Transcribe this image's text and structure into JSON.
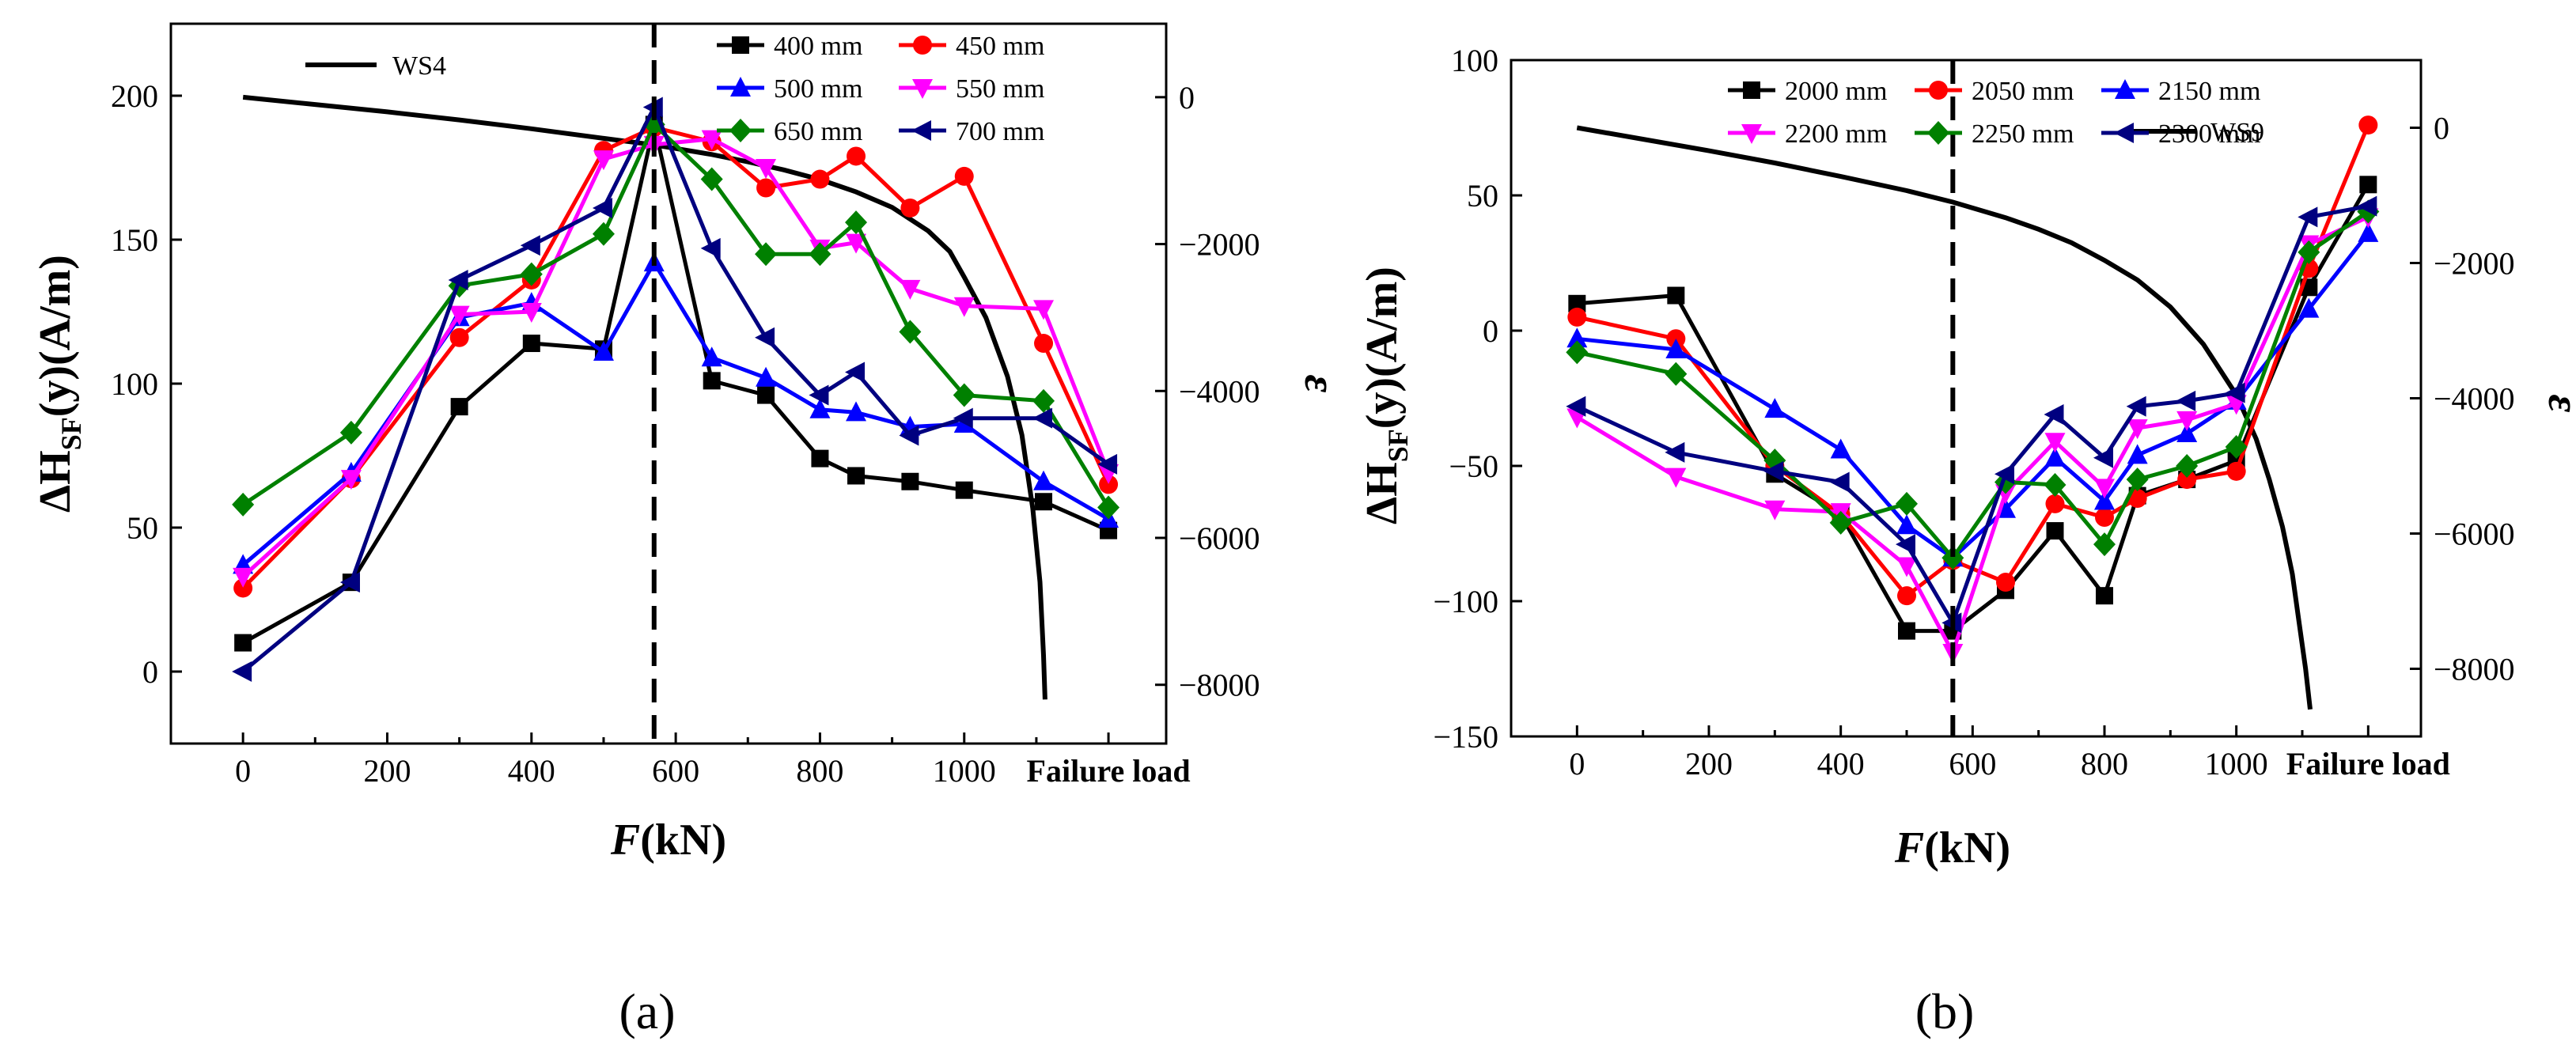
{
  "chart_data": [
    {
      "type": "line",
      "panel_label": "(a)",
      "xlabel": "F(kN)",
      "xlabel_main": "F",
      "xlabel_unit": "(kN)",
      "ylabel": "ΔH_SF(y)(A/m)",
      "ylabel_prefix": "ΔH",
      "ylabel_sub": "SF",
      "ylabel_suffix": "(y)(A/m)",
      "y2label": "ε",
      "xlim": [
        -100,
        1280
      ],
      "ylim": [
        -25,
        225
      ],
      "y2lim": [
        -8800,
        1000
      ],
      "x_ticks": [
        0,
        200,
        400,
        600,
        800,
        1000
      ],
      "x_tick_labels": [
        "0",
        "200",
        "400",
        "600",
        "800",
        "1000"
      ],
      "failure_label": "Failure load",
      "failure_x": 1200,
      "y_ticks": [
        0,
        50,
        100,
        150,
        200
      ],
      "y_tick_labels": [
        "0",
        "50",
        "100",
        "150",
        "200"
      ],
      "y2_ticks": [
        0,
        -2000,
        -4000,
        -6000,
        -8000
      ],
      "y2_tick_labels": [
        "0",
        "−2000",
        "−4000",
        "−6000",
        "−8000"
      ],
      "dashed_x": 570,
      "x": [
        0,
        150,
        300,
        400,
        500,
        570,
        650,
        725,
        800,
        850,
        925,
        1000,
        1110,
        1200
      ],
      "series": [
        {
          "name": "400 mm",
          "color": "#000000",
          "marker": "square",
          "values": [
            10,
            31,
            92,
            114,
            112,
            190,
            101,
            96,
            74,
            68,
            66,
            63,
            59,
            49
          ]
        },
        {
          "name": "450 mm",
          "color": "#ff0000",
          "marker": "circle",
          "values": [
            29,
            67,
            116,
            136,
            181,
            189,
            184,
            168,
            171,
            179,
            161,
            172,
            114,
            65
          ]
        },
        {
          "name": "500 mm",
          "color": "#0000ff",
          "marker": "triangle-up",
          "values": [
            37,
            69,
            123,
            128,
            111,
            142,
            109,
            102,
            91,
            90,
            85,
            86,
            66,
            53
          ]
        },
        {
          "name": "550 mm",
          "color": "#ff00ff",
          "marker": "triangle-down",
          "values": [
            33,
            67,
            124,
            125,
            178,
            183,
            185,
            175,
            147,
            149,
            133,
            127,
            126,
            69
          ]
        },
        {
          "name": "650 mm",
          "color": "#008000",
          "marker": "diamond",
          "values": [
            58,
            83,
            134,
            138,
            152,
            190,
            171,
            145,
            145,
            156,
            118,
            96,
            94,
            57
          ]
        },
        {
          "name": "700 mm",
          "color": "#000080",
          "marker": "triangle-left",
          "values": [
            0,
            31,
            136,
            148,
            161,
            196,
            147,
            116,
            96,
            104,
            82,
            88,
            88,
            72
          ]
        }
      ],
      "strain_curve": {
        "name": "WS4",
        "color": "#000000",
        "x": [
          0,
          100,
          200,
          300,
          400,
          500,
          570,
          650,
          700,
          750,
          800,
          850,
          900,
          950,
          980,
          1000,
          1030,
          1060,
          1080,
          1095,
          1105,
          1110,
          1112
        ],
        "values": [
          0,
          -100,
          -200,
          -310,
          -430,
          -560,
          -650,
          -780,
          -880,
          -990,
          -1120,
          -1290,
          -1500,
          -1820,
          -2100,
          -2450,
          -3000,
          -3800,
          -4600,
          -5600,
          -6600,
          -7600,
          -8200
        ]
      }
    },
    {
      "type": "line",
      "panel_label": "(b)",
      "xlabel": "F(kN)",
      "xlabel_main": "F",
      "xlabel_unit": "(kN)",
      "ylabel": "ΔH_SF(y)(A/m)",
      "ylabel_prefix": "ΔH",
      "ylabel_sub": "SF",
      "ylabel_suffix": "(y)(A/m)",
      "y2label": "ε",
      "xlim": [
        -100,
        1280
      ],
      "ylim": [
        -150,
        100
      ],
      "y2lim": [
        -9000,
        1000
      ],
      "x_ticks": [
        0,
        200,
        400,
        600,
        800,
        1000
      ],
      "x_tick_labels": [
        "0",
        "200",
        "400",
        "600",
        "800",
        "1000"
      ],
      "failure_label": "Failure load",
      "failure_x": 1200,
      "y_ticks": [
        -150,
        -100,
        -50,
        0,
        50,
        100
      ],
      "y_tick_labels": [
        "−150",
        "−100",
        "−50",
        "0",
        "50",
        "100"
      ],
      "y2_ticks": [
        0,
        -2000,
        -4000,
        -6000,
        -8000
      ],
      "y2_tick_labels": [
        "0",
        "−2000",
        "−4000",
        "−6000",
        "−8000"
      ],
      "dashed_x": 570,
      "x": [
        0,
        150,
        300,
        400,
        500,
        570,
        650,
        725,
        800,
        850,
        925,
        1000,
        1110,
        1200
      ],
      "series": [
        {
          "name": "2000 mm",
          "color": "#000000",
          "marker": "square",
          "values": [
            10,
            13,
            -53,
            -68,
            -111,
            -111,
            -96,
            -74,
            -98,
            -61,
            -55,
            -48,
            16,
            54
          ]
        },
        {
          "name": "2050 mm",
          "color": "#ff0000",
          "marker": "circle",
          "values": [
            5,
            -3,
            -50,
            -68,
            -98,
            -85,
            -93,
            -64,
            -69,
            -62,
            -55,
            -52,
            23,
            76
          ]
        },
        {
          "name": "2150 mm",
          "color": "#0000ff",
          "marker": "triangle-up",
          "values": [
            -3,
            -7,
            -29,
            -44,
            -72,
            -84,
            -66,
            -47,
            -63,
            -46,
            -38,
            -26,
            8,
            36
          ]
        },
        {
          "name": "2200 mm",
          "color": "#ff00ff",
          "marker": "triangle-down",
          "values": [
            -32,
            -54,
            -66,
            -67,
            -87,
            -119,
            -60,
            -41,
            -58,
            -36,
            -33,
            -27,
            32,
            42
          ]
        },
        {
          "name": "2250 mm",
          "color": "#008000",
          "marker": "diamond",
          "values": [
            -8,
            -16,
            -48,
            -71,
            -64,
            -84,
            -56,
            -57,
            -79,
            -55,
            -50,
            -43,
            29,
            44
          ]
        },
        {
          "name": "2300 mm",
          "color": "#000080",
          "marker": "triangle-left",
          "values": [
            -28,
            -45,
            -52,
            -56,
            -79,
            -108,
            -53,
            -31,
            -47,
            -28,
            -26,
            -23,
            42,
            46
          ]
        }
      ],
      "strain_curve": {
        "name": "WS9",
        "color": "#000000",
        "x": [
          0,
          100,
          200,
          300,
          400,
          500,
          570,
          650,
          700,
          750,
          800,
          850,
          900,
          950,
          1000,
          1030,
          1050,
          1070,
          1085,
          1095,
          1105,
          1112
        ],
        "values": [
          0,
          -170,
          -340,
          -520,
          -720,
          -930,
          -1100,
          -1330,
          -1500,
          -1700,
          -1960,
          -2250,
          -2650,
          -3200,
          -3950,
          -4600,
          -5200,
          -5900,
          -6600,
          -7300,
          -8000,
          -8600
        ]
      }
    }
  ]
}
